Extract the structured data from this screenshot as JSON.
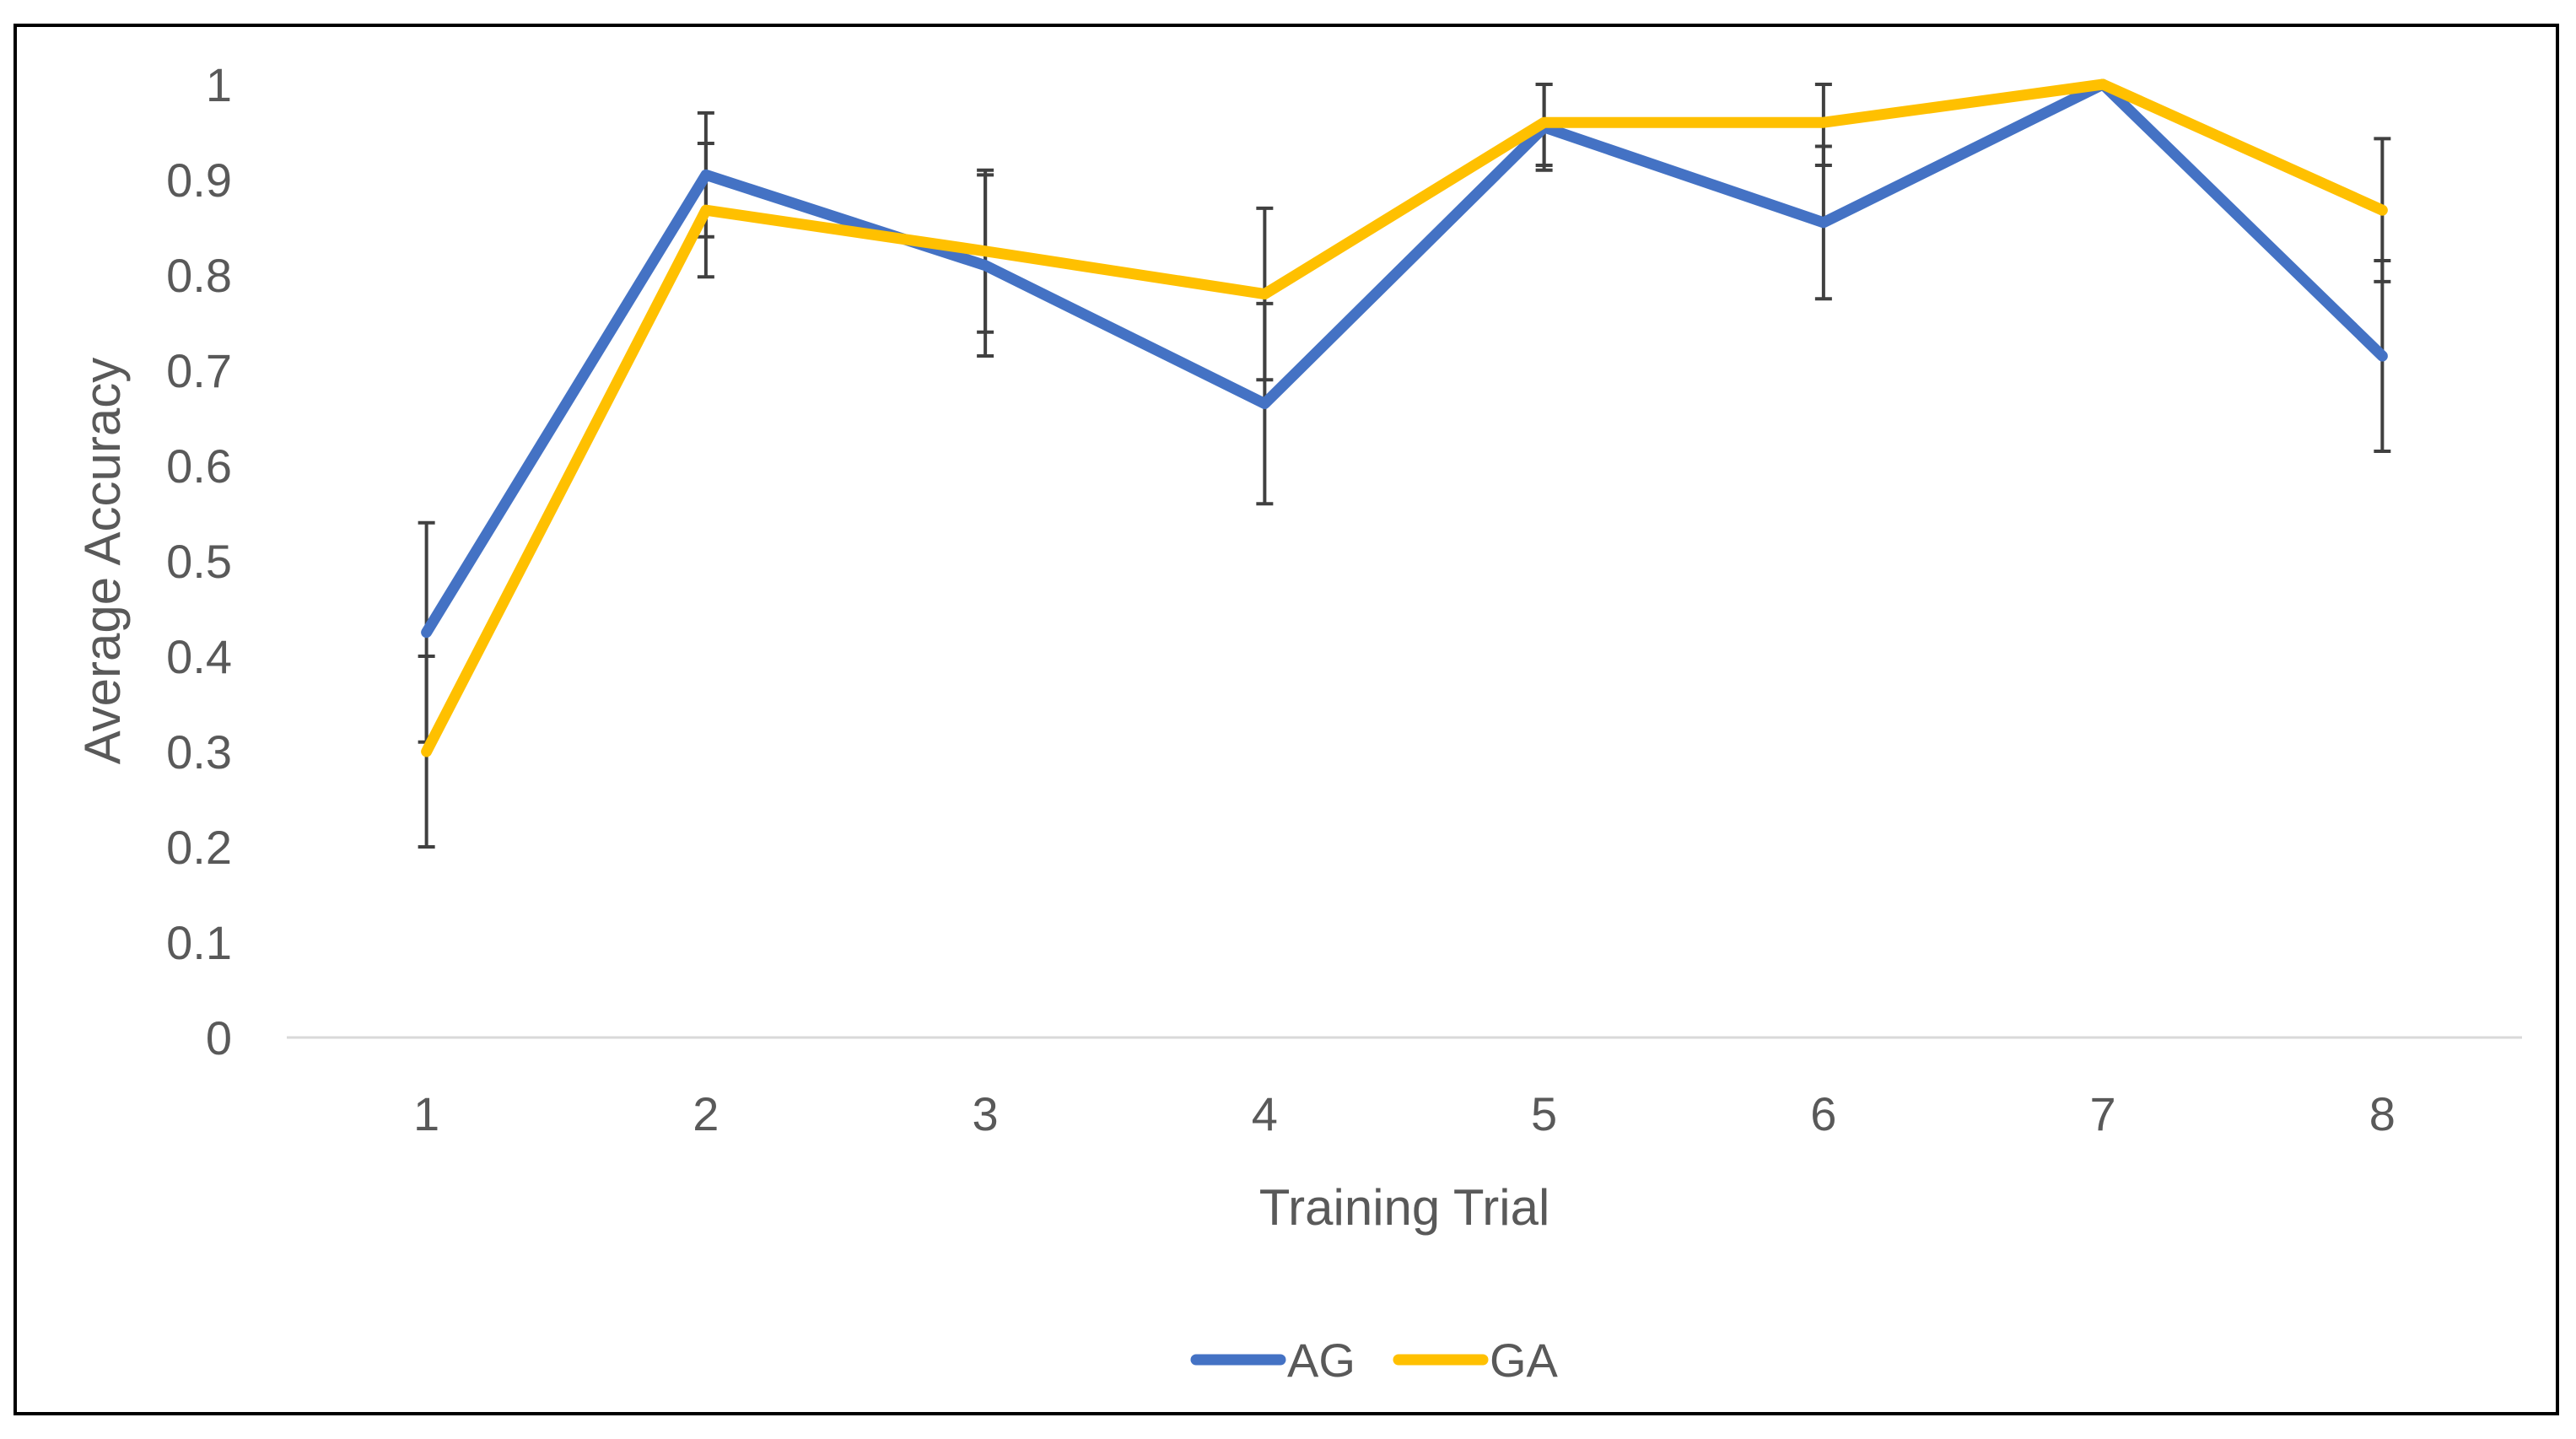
{
  "chart_data": {
    "type": "line",
    "title": "",
    "xlabel": "Training Trial",
    "ylabel": "Average Accuracy",
    "categories": [
      "1",
      "2",
      "3",
      "4",
      "5",
      "6",
      "7",
      "8"
    ],
    "ylim": [
      0,
      1
    ],
    "yticks": [
      "0",
      "0.1",
      "0.2",
      "0.3",
      "0.4",
      "0.5",
      "0.6",
      "0.7",
      "0.8",
      "0.9",
      "1"
    ],
    "ytick_values": [
      0,
      0.1,
      0.2,
      0.3,
      0.4,
      0.5,
      0.6,
      0.7,
      0.8,
      0.9,
      1
    ],
    "grid": false,
    "legend_position": "bottom",
    "series": [
      {
        "name": "AG",
        "color": "#4472C4",
        "values": [
          0.425,
          0.905,
          0.81,
          0.665,
          0.955,
          0.855,
          1.0,
          0.715
        ],
        "error": [
          0.115,
          0.065,
          0.095,
          0.105,
          0.045,
          0.08,
          0.0,
          0.1
        ]
      },
      {
        "name": "GA",
        "color": "#FFC000",
        "values": [
          0.3,
          0.868,
          0.825,
          0.78,
          0.96,
          0.96,
          1.0,
          0.868
        ],
        "error": [
          0.1,
          0.07,
          0.085,
          0.09,
          0.045,
          0.045,
          0.0,
          0.075
        ]
      }
    ]
  }
}
